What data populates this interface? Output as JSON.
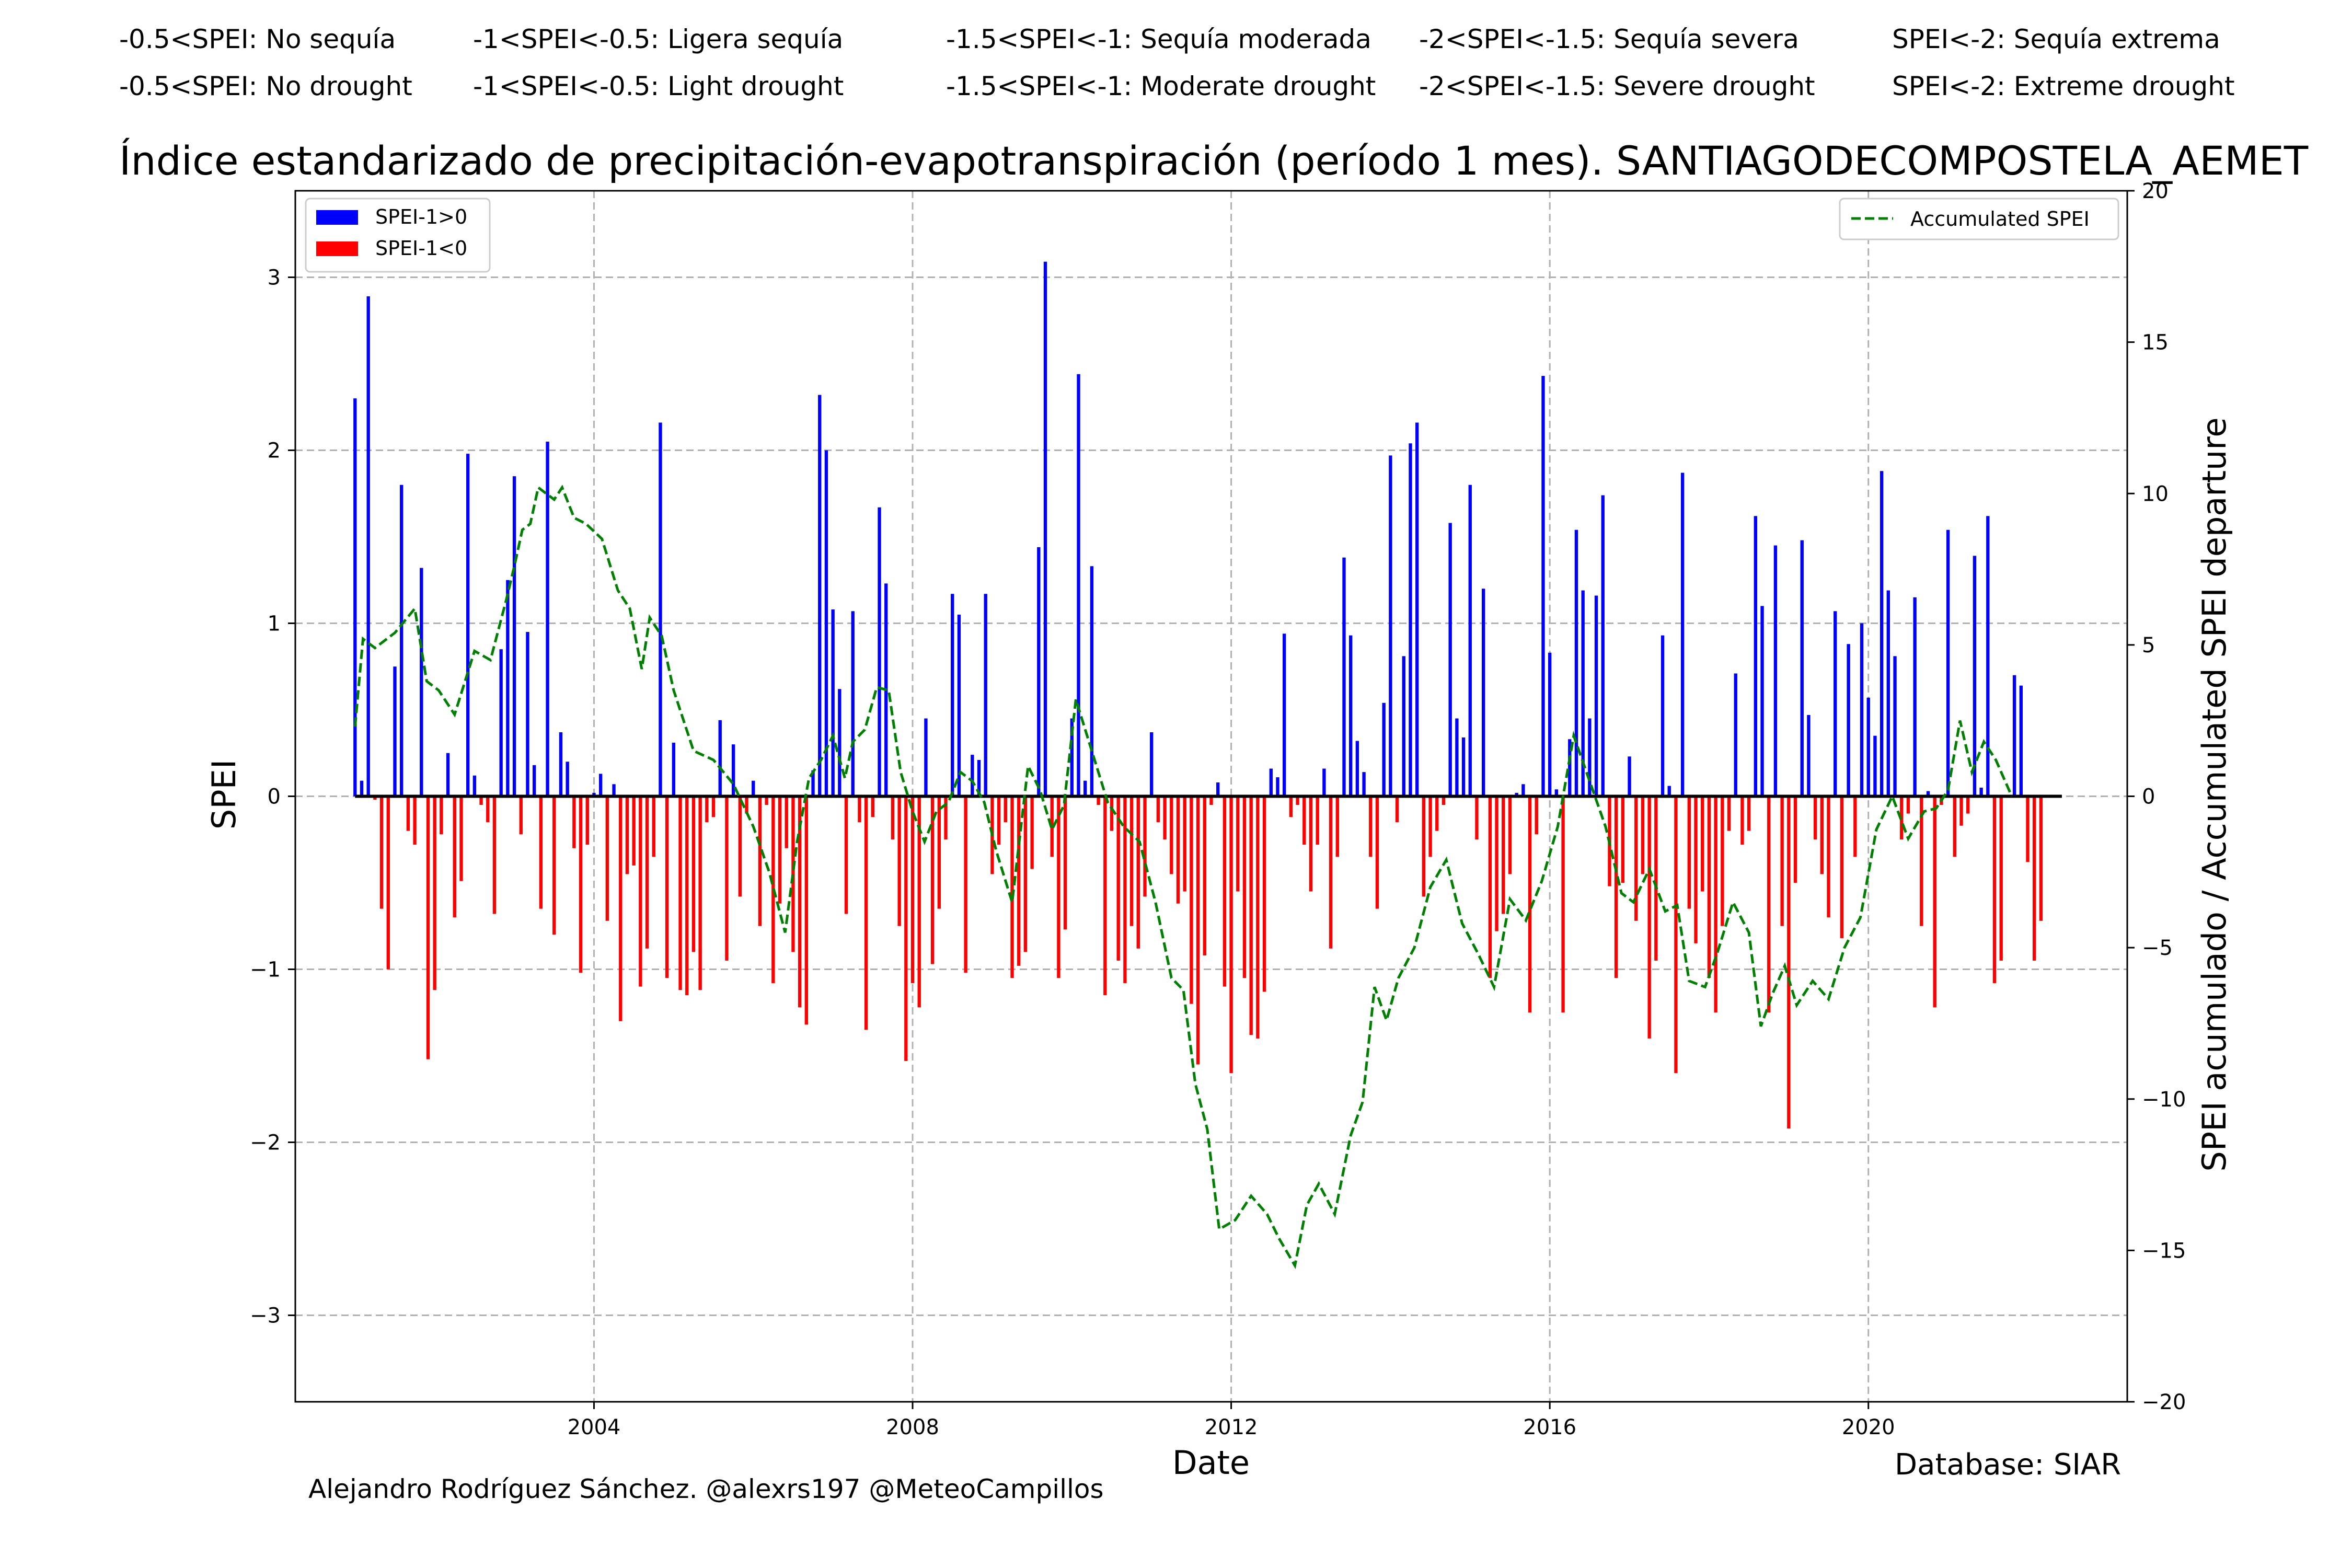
{
  "categories_es": [
    "-0.5<SPEI: No sequía",
    "-1<SPEI<-0.5: Ligera sequía",
    "-1.5<SPEI<-1: Sequía moderada",
    "-2<SPEI<-1.5: Sequía severa",
    "SPEI<-2: Sequía extrema"
  ],
  "categories_en": [
    "-0.5<SPEI: No drought",
    "-1<SPEI<-0.5: Light drought",
    "-1.5<SPEI<-1: Moderate drought",
    "-2<SPEI<-1.5: Severe drought",
    "SPEI<-2: Extreme drought"
  ],
  "credit": "Alejandro Rodríguez Sánchez. @alexrs197 @MeteoCampillos",
  "database": "Database: SIAR",
  "colors": {
    "positive": "#0000ff",
    "negative": "#ff0000",
    "accumulated": "#008000",
    "grid": "#b0b0b0"
  },
  "chart_data": {
    "type": "bar",
    "title": "Índice estandarizado de precipitación-evapotranspiración (período 1 mes). SANTIAGODECOMPOSTELA_AEMET",
    "xlabel": "Date",
    "ylabel": "SPEI",
    "y2label": "SPEI acumulado / Accumulated SPEI departure",
    "xlim": [
      2000.25,
      2023.25
    ],
    "ylim": [
      -3.5,
      3.5
    ],
    "y2lim": [
      -20,
      20
    ],
    "xticks": [
      2004,
      2008,
      2012,
      2016,
      2020
    ],
    "yticks": [
      -3,
      -2,
      -1,
      0,
      1,
      2,
      3
    ],
    "y2ticks": [
      -20,
      -15,
      -10,
      -5,
      0,
      5,
      10,
      15,
      20
    ],
    "grid": true,
    "legend_left": {
      "placement": "top-left",
      "entries": [
        "SPEI-1>0",
        "SPEI-1<0"
      ]
    },
    "legend_right": {
      "placement": "top-right",
      "entries": [
        "Accumulated SPEI"
      ]
    },
    "series": [
      {
        "name": "SPEI-1",
        "start_year": 2001,
        "step_months": 1,
        "values": [
          2.3,
          0.09,
          2.89,
          -0.02,
          -0.65,
          -1.0,
          0.75,
          1.8,
          -0.2,
          -0.28,
          1.32,
          -1.52,
          -1.12,
          -0.22,
          0.25,
          -0.7,
          -0.49,
          1.98,
          0.12,
          -0.05,
          -0.15,
          -0.68,
          0.85,
          1.25,
          1.85,
          -0.22,
          0.95,
          0.18,
          -0.65,
          2.05,
          -0.8,
          0.37,
          0.2,
          -0.3,
          -1.02,
          -0.28,
          0.02,
          0.13,
          -0.72,
          0.07,
          -1.3,
          -0.45,
          -0.4,
          -1.1,
          -0.88,
          -0.35,
          2.16,
          -1.05,
          0.31,
          -1.12,
          -1.15,
          -0.9,
          -1.12,
          -0.15,
          -0.12,
          0.44,
          -0.95,
          0.3,
          -0.58,
          -0.1,
          0.09,
          -0.75,
          -0.05,
          -1.08,
          -0.62,
          -0.3,
          -0.9,
          -1.22,
          -1.32,
          0.15,
          2.32,
          2.0,
          1.08,
          0.62,
          -0.68,
          1.07,
          -0.15,
          -1.35,
          -0.12,
          1.67,
          1.23,
          -0.25,
          -0.75,
          -1.53,
          -1.08,
          -1.22,
          0.45,
          -0.97,
          -0.65,
          -0.25,
          1.17,
          1.05,
          -1.02,
          0.24,
          0.21,
          1.17,
          -0.45,
          -0.28,
          -0.15,
          -1.05,
          -0.98,
          -0.9,
          -0.42,
          1.44,
          3.09,
          -0.35,
          -1.05,
          -0.77,
          0.45,
          2.44,
          0.09,
          1.33,
          -0.05,
          -1.15,
          -0.2,
          -0.95,
          -1.08,
          -0.75,
          -0.88,
          -0.58,
          0.37,
          -0.15,
          -0.25,
          -0.45,
          -0.62,
          -0.55,
          -1.2,
          -1.55,
          -0.92,
          -0.05,
          0.08,
          -1.1,
          -1.6,
          -0.55,
          -1.05,
          -1.38,
          -1.4,
          -1.13,
          0.16,
          0.11,
          0.94,
          -0.12,
          -0.05,
          -0.28,
          -0.55,
          -0.28,
          0.16,
          -0.88,
          -0.35,
          1.38,
          0.93,
          0.32,
          0.14,
          -0.35,
          -0.65,
          0.54,
          1.97,
          -0.15,
          0.81,
          2.04,
          2.16,
          -0.58,
          -0.35,
          -0.2,
          -0.05,
          1.58,
          0.45,
          0.34,
          1.8,
          -0.25,
          1.2,
          -1.05,
          -0.78,
          -0.68,
          -0.45,
          0.02,
          0.07,
          -1.25,
          -0.22,
          2.43,
          0.83,
          0.04,
          -1.25,
          0.33,
          1.54,
          1.19,
          0.45,
          1.16,
          1.74,
          -0.52,
          -1.05,
          -0.5,
          0.23,
          -0.72,
          -0.45,
          -1.4,
          -0.95,
          0.93,
          0.06,
          -1.6,
          1.87,
          -0.65,
          -0.85,
          -0.55,
          -1.05,
          -1.25,
          -0.75,
          -0.2,
          0.71,
          -0.28,
          -0.2,
          1.62,
          1.1,
          -1.25,
          1.45,
          -0.75,
          -1.92,
          -0.5,
          1.48,
          0.47,
          -0.25,
          -0.45,
          -0.7,
          1.07,
          -0.82,
          0.88,
          -0.35,
          1.0,
          0.57,
          0.35,
          1.88,
          1.19,
          0.81,
          -0.25,
          -0.1,
          1.15,
          -0.75,
          0.03,
          -1.22,
          -0.05,
          1.54,
          -0.35,
          -0.17,
          -0.1,
          1.39,
          0.05,
          1.62,
          -1.08,
          -0.95,
          0.0,
          0.7,
          0.64,
          -0.38,
          -0.95,
          -0.72
        ]
      },
      {
        "name": "Accumulated SPEI",
        "axis": "right",
        "x": [
          2001.0,
          2001.1,
          2001.25,
          2001.5,
          2001.75,
          2001.9,
          2002.05,
          2002.25,
          2002.5,
          2002.7,
          2002.9,
          2003.0,
          2003.1,
          2003.2,
          2003.3,
          2003.5,
          2003.6,
          2003.75,
          2003.9,
          2004.1,
          2004.3,
          2004.45,
          2004.6,
          2004.7,
          2004.85,
          2005.0,
          2005.25,
          2005.5,
          2005.75,
          2006.0,
          2006.2,
          2006.4,
          2006.55,
          2006.7,
          2006.85,
          2007.0,
          2007.15,
          2007.25,
          2007.4,
          2007.55,
          2007.7,
          2007.85,
          2008.0,
          2008.15,
          2008.3,
          2008.45,
          2008.6,
          2008.75,
          2008.9,
          2009.05,
          2009.25,
          2009.45,
          2009.6,
          2009.75,
          2009.9,
          2010.05,
          2010.25,
          2010.45,
          2010.65,
          2010.85,
          2011.05,
          2011.25,
          2011.4,
          2011.55,
          2011.7,
          2011.85,
          2012.05,
          2012.25,
          2012.45,
          2012.6,
          2012.8,
          2012.95,
          2013.1,
          2013.3,
          2013.5,
          2013.65,
          2013.8,
          2013.95,
          2014.1,
          2014.3,
          2014.5,
          2014.7,
          2014.9,
          2015.1,
          2015.3,
          2015.5,
          2015.7,
          2015.9,
          2016.1,
          2016.3,
          2016.5,
          2016.7,
          2016.9,
          2017.05,
          2017.25,
          2017.45,
          2017.6,
          2017.75,
          2017.95,
          2018.1,
          2018.3,
          2018.5,
          2018.65,
          2018.8,
          2018.95,
          2019.1,
          2019.3,
          2019.5,
          2019.7,
          2019.9,
          2020.1,
          2020.3,
          2020.5,
          2020.7,
          2020.85,
          2021.0,
          2021.15,
          2021.3,
          2021.45,
          2021.6,
          2021.8
        ],
        "y": [
          2.3,
          5.2,
          4.9,
          5.4,
          6.2,
          3.8,
          3.5,
          2.7,
          4.8,
          4.5,
          6.5,
          7.6,
          8.8,
          9.0,
          10.2,
          9.8,
          10.2,
          9.2,
          9.0,
          8.5,
          6.8,
          6.2,
          4.2,
          5.9,
          5.3,
          3.5,
          1.5,
          1.2,
          0.4,
          -1.0,
          -2.5,
          -4.5,
          -1.5,
          0.6,
          1.2,
          2.0,
          0.6,
          1.8,
          2.2,
          3.6,
          3.5,
          0.8,
          -0.5,
          -1.5,
          -0.5,
          -0.2,
          0.8,
          0.5,
          -0.2,
          -1.8,
          -3.5,
          1.0,
          0.2,
          -1.1,
          -0.3,
          3.2,
          1.5,
          -0.2,
          -1.0,
          -1.5,
          -3.5,
          -6.0,
          -6.4,
          -9.5,
          -11.0,
          -14.3,
          -14.0,
          -13.2,
          -13.8,
          -14.6,
          -15.5,
          -13.5,
          -12.8,
          -13.8,
          -11.2,
          -10.1,
          -6.3,
          -7.4,
          -6.0,
          -5.0,
          -3.0,
          -2.1,
          -4.2,
          -5.2,
          -6.3,
          -3.4,
          -4.1,
          -2.8,
          -1.0,
          2.0,
          0.5,
          -1.0,
          -3.2,
          -3.5,
          -2.4,
          -3.8,
          -3.6,
          -6.1,
          -6.3,
          -5.2,
          -3.5,
          -4.5,
          -7.6,
          -6.5,
          -5.6,
          -6.9,
          -6.1,
          -6.7,
          -5.0,
          -4.0,
          -1.1,
          0.0,
          -1.4,
          -0.5,
          -0.4,
          0.2,
          2.5,
          0.8,
          1.8,
          1.2,
          0.0
        ]
      }
    ]
  }
}
